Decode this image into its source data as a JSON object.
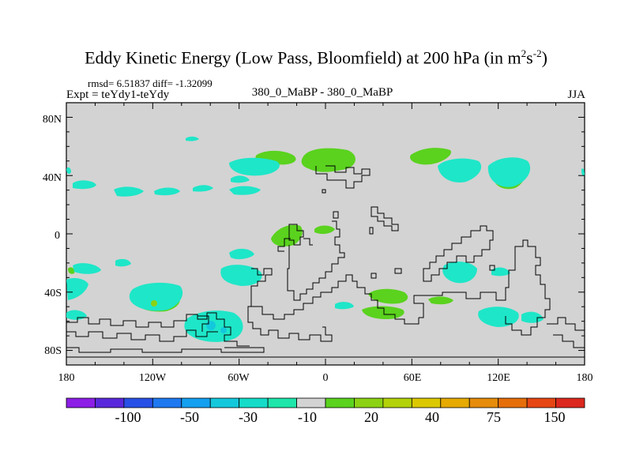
{
  "title": {
    "text": "Eddy Kinetic Energy (Low Pass, Bloomfield) at 200 hPa (in m",
    "sup1": "2",
    "mid": "s",
    "sup2": "-2",
    "close": ")"
  },
  "stats": "rmsd= 6.51837 diff= -1.32099",
  "experiment": "Expt = teYdy1-teYdy",
  "case_label": "380_0_MaBP - 380_0_MaBP",
  "season": "JJA",
  "map": {
    "lat_labels": [
      "80N",
      "40N",
      "0",
      "40S",
      "80S"
    ],
    "lon_labels": [
      "180",
      "120W",
      "60W",
      "0",
      "60E",
      "120E",
      "180"
    ],
    "background_color": "#d3d3d3"
  },
  "colorbar": {
    "colors": [
      "#8c1ee6",
      "#5a28dc",
      "#2850e6",
      "#1e78f0",
      "#14a0f0",
      "#14c8dc",
      "#14dcc8",
      "#1ee6aa",
      "#d3d3d3",
      "#5ad21e",
      "#8cd214",
      "#b4d20a",
      "#dcc800",
      "#e6aa00",
      "#e68c0a",
      "#e66e0a",
      "#e64614",
      "#dc281e"
    ],
    "labels": [
      "-100",
      "-50",
      "-30",
      "-10",
      "20",
      "40",
      "75",
      "150"
    ]
  }
}
